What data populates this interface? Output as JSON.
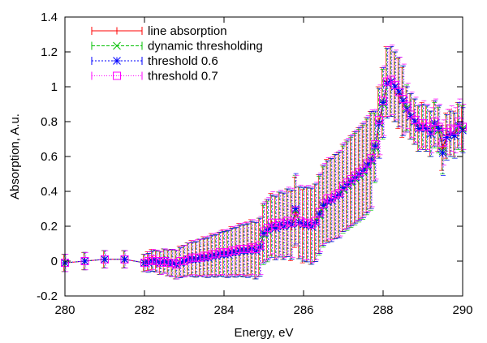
{
  "chart_data": {
    "type": "line",
    "xlabel": "Energy, eV",
    "ylabel": "Absorption, A.u.",
    "xlim": [
      280,
      290
    ],
    "ylim": [
      -0.2,
      1.4
    ],
    "xticks": [
      "280",
      "282",
      "284",
      "286",
      "288",
      "290"
    ],
    "yticks": [
      "-0.2",
      "0",
      "0.2",
      "0.4",
      "0.6",
      "0.8",
      "1",
      "1.2",
      "1.4"
    ],
    "grid": false,
    "legend_position": "top-left",
    "x": [
      280,
      280.5,
      281,
      281.5,
      282,
      282.1,
      282.2,
      282.3,
      282.4,
      282.5,
      282.6,
      282.7,
      282.8,
      282.9,
      283,
      283.1,
      283.2,
      283.3,
      283.4,
      283.5,
      283.6,
      283.7,
      283.8,
      283.9,
      284,
      284.1,
      284.2,
      284.3,
      284.4,
      284.5,
      284.6,
      284.7,
      284.8,
      284.9,
      285,
      285.1,
      285.2,
      285.3,
      285.4,
      285.5,
      285.6,
      285.7,
      285.8,
      285.9,
      286,
      286.1,
      286.2,
      286.3,
      286.4,
      286.5,
      286.6,
      286.7,
      286.8,
      286.9,
      287,
      287.1,
      287.2,
      287.3,
      287.4,
      287.5,
      287.6,
      287.7,
      287.8,
      287.9,
      288,
      288.1,
      288.2,
      288.3,
      288.4,
      288.5,
      288.6,
      288.7,
      288.8,
      288.9,
      289,
      289.1,
      289.2,
      289.3,
      289.4,
      289.5,
      289.6,
      289.7,
      289.8,
      289.9,
      290
    ],
    "series": [
      {
        "name": "line absorption",
        "color": "#ff0000",
        "marker": "plus",
        "dash": "",
        "values": [
          -0.01,
          0.0,
          0.01,
          0.01,
          -0.01,
          0.0,
          0.01,
          0.0,
          -0.01,
          0.0,
          -0.01,
          -0.01,
          -0.02,
          0.0,
          0.0,
          0.01,
          0.02,
          0.01,
          0.02,
          0.03,
          0.02,
          0.04,
          0.03,
          0.04,
          0.05,
          0.04,
          0.06,
          0.05,
          0.07,
          0.06,
          0.07,
          0.08,
          0.06,
          0.08,
          0.16,
          0.18,
          0.21,
          0.19,
          0.21,
          0.2,
          0.22,
          0.2,
          0.28,
          0.22,
          0.2,
          0.21,
          0.2,
          0.22,
          0.27,
          0.32,
          0.35,
          0.35,
          0.37,
          0.38,
          0.42,
          0.44,
          0.46,
          0.48,
          0.5,
          0.52,
          0.55,
          0.58,
          0.66,
          0.8,
          0.91,
          1.03,
          1.03,
          1.0,
          0.96,
          0.91,
          0.87,
          0.83,
          0.8,
          0.76,
          0.78,
          0.76,
          0.73,
          0.79,
          0.76,
          0.65,
          0.72,
          0.74,
          0.73,
          0.78,
          0.76
        ]
      },
      {
        "name": "dynamic thresholding",
        "color": "#00c000",
        "marker": "x",
        "dash": "4,2",
        "values": [
          -0.01,
          0.0,
          0.01,
          0.01,
          -0.01,
          -0.01,
          0.0,
          0.0,
          -0.01,
          0.0,
          -0.01,
          -0.01,
          -0.02,
          -0.01,
          0.0,
          0.01,
          0.01,
          0.01,
          0.02,
          0.02,
          0.02,
          0.03,
          0.03,
          0.04,
          0.04,
          0.04,
          0.05,
          0.05,
          0.06,
          0.06,
          0.06,
          0.07,
          0.06,
          0.08,
          0.15,
          0.17,
          0.2,
          0.19,
          0.21,
          0.2,
          0.22,
          0.21,
          0.29,
          0.22,
          0.21,
          0.21,
          0.2,
          0.22,
          0.26,
          0.31,
          0.34,
          0.35,
          0.37,
          0.38,
          0.41,
          0.43,
          0.45,
          0.47,
          0.49,
          0.51,
          0.54,
          0.57,
          0.65,
          0.79,
          0.9,
          1.02,
          1.03,
          1.0,
          0.97,
          0.92,
          0.88,
          0.83,
          0.8,
          0.76,
          0.77,
          0.76,
          0.73,
          0.78,
          0.75,
          0.63,
          0.71,
          0.73,
          0.72,
          0.77,
          0.76
        ]
      },
      {
        "name": "threshold 0.6",
        "color": "#0000ff",
        "marker": "star",
        "dash": "2,2",
        "values": [
          -0.01,
          0.0,
          0.01,
          0.01,
          -0.01,
          -0.01,
          0.0,
          0.0,
          -0.01,
          0.0,
          -0.01,
          -0.01,
          -0.02,
          -0.01,
          0.0,
          0.01,
          0.01,
          0.01,
          0.02,
          0.02,
          0.02,
          0.03,
          0.03,
          0.04,
          0.04,
          0.04,
          0.05,
          0.05,
          0.06,
          0.06,
          0.06,
          0.07,
          0.06,
          0.08,
          0.16,
          0.18,
          0.2,
          0.19,
          0.21,
          0.2,
          0.22,
          0.21,
          0.3,
          0.22,
          0.21,
          0.21,
          0.2,
          0.22,
          0.27,
          0.32,
          0.34,
          0.35,
          0.37,
          0.38,
          0.42,
          0.44,
          0.46,
          0.48,
          0.5,
          0.52,
          0.55,
          0.58,
          0.66,
          0.79,
          0.91,
          1.02,
          1.03,
          1.0,
          0.97,
          0.92,
          0.87,
          0.83,
          0.8,
          0.76,
          0.77,
          0.76,
          0.73,
          0.79,
          0.76,
          0.62,
          0.71,
          0.73,
          0.72,
          0.78,
          0.75
        ]
      },
      {
        "name": "threshold 0.7",
        "color": "#ff00ff",
        "marker": "square",
        "dash": "1,2",
        "values": [
          -0.01,
          0.0,
          0.01,
          0.01,
          -0.01,
          0.0,
          0.01,
          0.0,
          -0.01,
          0.0,
          -0.01,
          -0.01,
          -0.02,
          0.0,
          0.0,
          0.01,
          0.02,
          0.02,
          0.02,
          0.03,
          0.03,
          0.04,
          0.04,
          0.05,
          0.05,
          0.05,
          0.06,
          0.06,
          0.07,
          0.07,
          0.07,
          0.08,
          0.07,
          0.09,
          0.17,
          0.19,
          0.22,
          0.2,
          0.22,
          0.21,
          0.23,
          0.22,
          0.29,
          0.23,
          0.22,
          0.22,
          0.21,
          0.23,
          0.28,
          0.33,
          0.36,
          0.36,
          0.38,
          0.39,
          0.43,
          0.45,
          0.47,
          0.49,
          0.51,
          0.53,
          0.56,
          0.59,
          0.67,
          0.81,
          0.92,
          1.03,
          1.04,
          1.01,
          0.97,
          0.93,
          0.89,
          0.84,
          0.81,
          0.77,
          0.79,
          0.77,
          0.75,
          0.8,
          0.77,
          0.68,
          0.74,
          0.76,
          0.75,
          0.8,
          0.77
        ]
      }
    ]
  }
}
